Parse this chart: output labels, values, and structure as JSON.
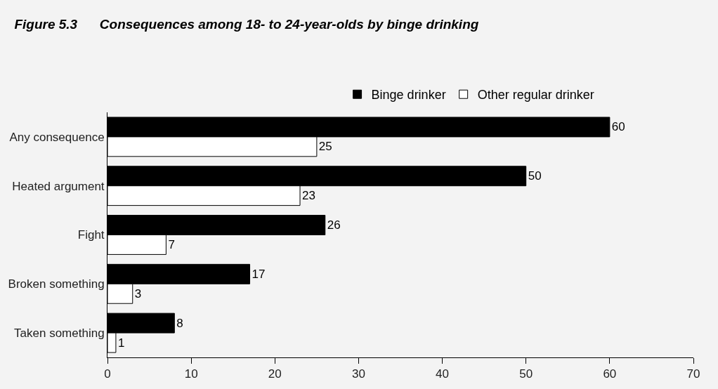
{
  "chart_data": {
    "type": "bar",
    "orientation": "horizontal",
    "title": "Figure 5.3      Consequences among 18- to 24-year-olds by binge drinking",
    "categories": [
      "Any consequence",
      "Heated argument",
      "Fight",
      "Broken something",
      "Taken something"
    ],
    "series": [
      {
        "name": "Binge drinker",
        "color": "#000000",
        "values": [
          60,
          50,
          26,
          17,
          8
        ]
      },
      {
        "name": "Other regular drinker",
        "color": "#ffffff",
        "values": [
          25,
          23,
          7,
          3,
          1
        ]
      }
    ],
    "xlim": [
      0,
      70
    ],
    "xticks": [
      0,
      10,
      20,
      30,
      40,
      50,
      60,
      70
    ],
    "data_labels": true,
    "legend": "top",
    "grid": false
  }
}
